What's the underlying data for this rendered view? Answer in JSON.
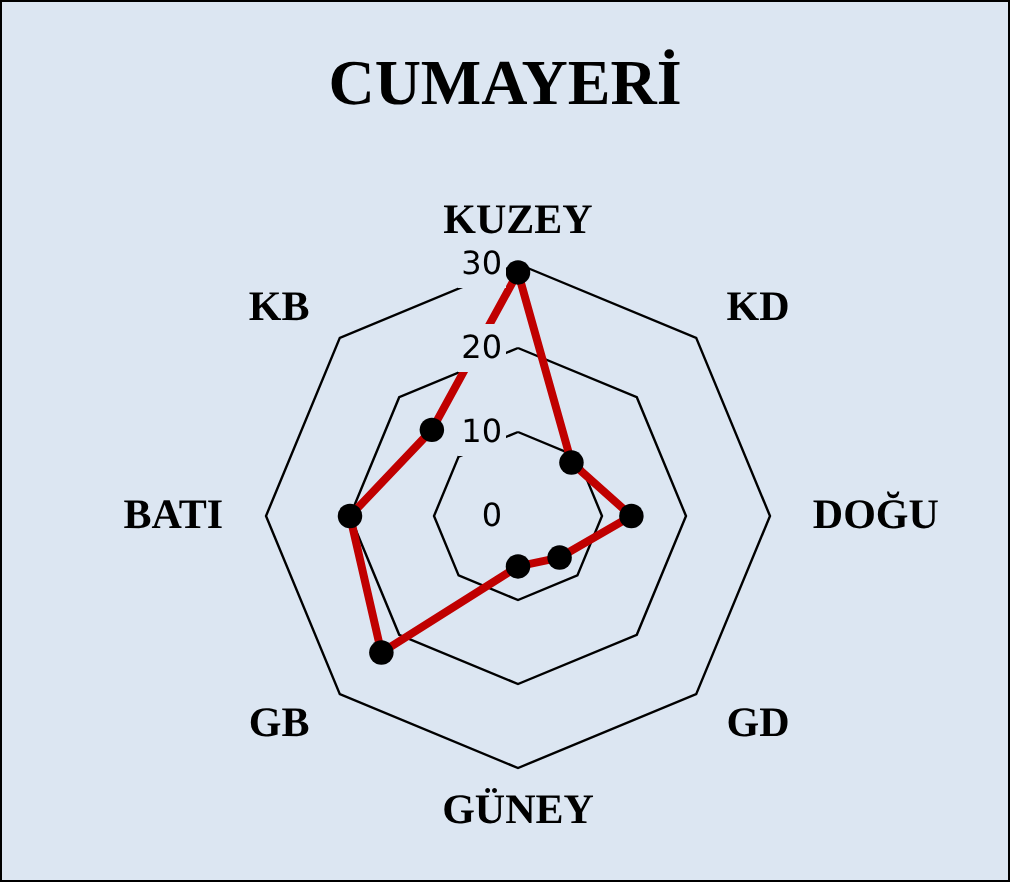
{
  "chart_data": {
    "type": "radar",
    "title": "CUMAYERİ",
    "categories": [
      "KUZEY",
      "KD",
      "DOĞU",
      "GD",
      "GÜNEY",
      "GB",
      "BATI",
      "KB"
    ],
    "series": [
      {
        "color": "#c00000",
        "values": [
          29,
          9,
          13.5,
          7,
          6,
          23,
          20,
          14.5
        ]
      }
    ],
    "ylim": [
      0,
      30
    ],
    "yticks": [
      0,
      10,
      20,
      30
    ],
    "grid": true,
    "marker": "circle",
    "line_style": "solid"
  }
}
